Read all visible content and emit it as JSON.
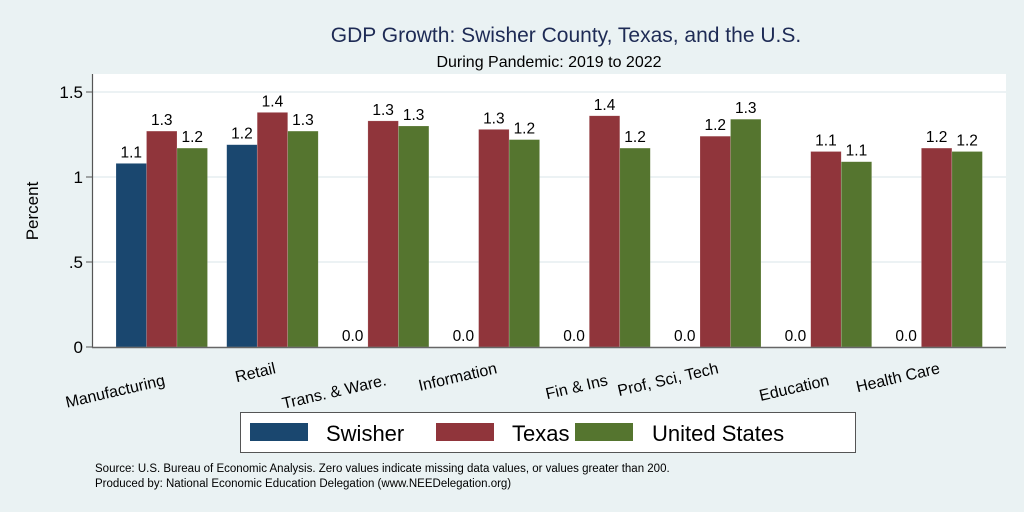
{
  "chart_data": {
    "type": "bar",
    "title": "GDP Growth: Swisher County, Texas, and the U.S.",
    "subtitle": "During Pandemic: 2019 to 2022",
    "xlabel": "",
    "ylabel": "Percent",
    "ylim": [
      0,
      1.6
    ],
    "yticks": [
      0,
      0.5,
      1,
      1.5
    ],
    "ytick_labels": [
      "0",
      ".5",
      "1",
      "1.5"
    ],
    "grid": true,
    "legend_position": "bottom",
    "categories": [
      "Manufacturing",
      "Retail",
      "Trans. & Ware.",
      "Information",
      "Fin & Ins",
      "Prof, Sci, Tech",
      "Education",
      "Health Care"
    ],
    "series": [
      {
        "name": "Swisher",
        "color": "#1a476f",
        "values": [
          1.08,
          1.19,
          0,
          0,
          0,
          0,
          0,
          0
        ],
        "labels": [
          "1.1",
          "1.2",
          "0.0",
          "0.0",
          "0.0",
          "0.0",
          "0.0",
          "0.0"
        ]
      },
      {
        "name": "Texas",
        "color": "#90353b",
        "values": [
          1.27,
          1.38,
          1.33,
          1.28,
          1.36,
          1.24,
          1.15,
          1.17
        ],
        "labels": [
          "1.3",
          "1.4",
          "1.3",
          "1.3",
          "1.4",
          "1.2",
          "1.1",
          "1.2"
        ]
      },
      {
        "name": "United States",
        "color": "#55752f",
        "values": [
          1.17,
          1.27,
          1.3,
          1.22,
          1.17,
          1.34,
          1.09,
          1.15
        ],
        "labels": [
          "1.2",
          "1.3",
          "1.3",
          "1.2",
          "1.2",
          "1.3",
          "1.1",
          "1.2"
        ]
      }
    ],
    "notes": [
      "Source: U.S. Bureau of Economic Analysis. Zero values indicate missing data values, or values greater than 200.",
      "Produced by: National Economic Education Delegation (www.NEEDelegation.org)"
    ]
  }
}
